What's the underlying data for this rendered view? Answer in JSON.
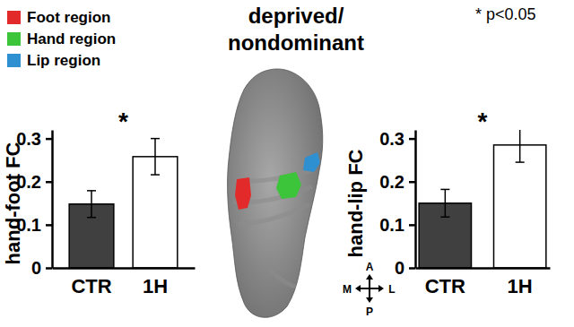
{
  "title": [
    "deprived/",
    "nondominant"
  ],
  "note": "* p<0.05",
  "regions": [
    {
      "name": "Foot region",
      "color": "#e32a2a"
    },
    {
      "name": "Hand region",
      "color": "#3cc43a"
    },
    {
      "name": "Lip region",
      "color": "#2e8fd1"
    }
  ],
  "orientation_labels": {
    "anterior": "A",
    "posterior": "P",
    "medial": "M",
    "lateral": "L"
  },
  "chart_data": [
    {
      "type": "bar",
      "y_label": "hand-foot FC",
      "categories": [
        "CTR",
        "1H"
      ],
      "values": [
        0.148,
        0.258
      ],
      "errors": [
        0.031,
        0.042
      ],
      "colors": [
        "#404040",
        "#ffffff"
      ],
      "ylim": [
        0,
        0.32
      ],
      "yticks": [
        0,
        0.1,
        0.2,
        0.3
      ],
      "annotation": "*"
    },
    {
      "type": "bar",
      "y_label": "hand-lip FC",
      "categories": [
        "CTR",
        "1H"
      ],
      "values": [
        0.15,
        0.285
      ],
      "errors": [
        0.032,
        0.04
      ],
      "colors": [
        "#404040",
        "#ffffff"
      ],
      "ylim": [
        0,
        0.32
      ],
      "yticks": [
        0,
        0.1,
        0.2,
        0.3
      ],
      "annotation": "*"
    }
  ]
}
